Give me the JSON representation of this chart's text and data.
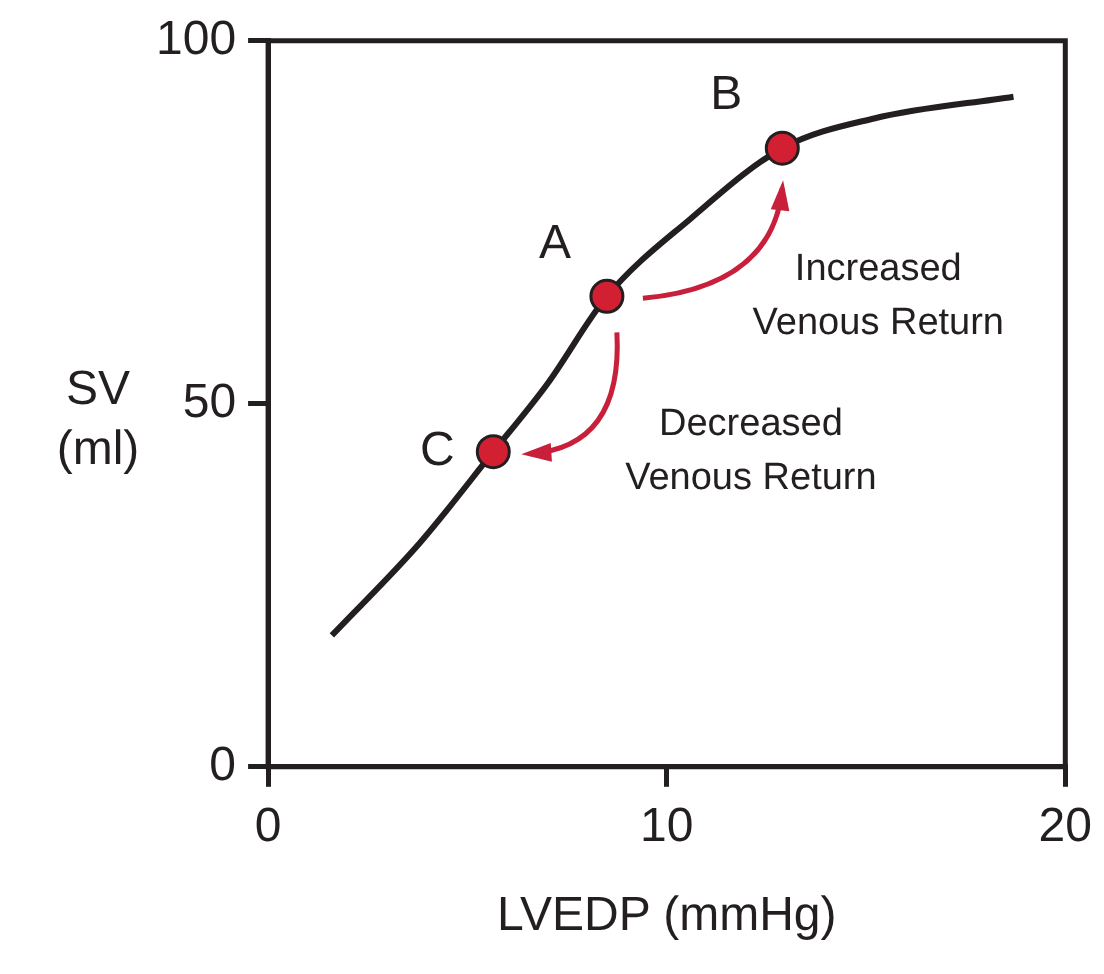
{
  "chart_data": {
    "type": "line",
    "xlabel": "LVEDP (mmHg)",
    "ylabel": "SV\n(ml)",
    "xlim": [
      0,
      20
    ],
    "xticks": [
      0,
      10,
      20
    ],
    "ylim": [
      0,
      100
    ],
    "yticks": [
      0,
      50,
      100
    ],
    "grid": false,
    "legend": false,
    "series": [
      {
        "color": "#231f20",
        "marker": "none",
        "x": [
          1.6,
          3.8,
          5.65,
          7.0,
          8.5,
          10.6,
          12.9,
          15.2,
          18.7
        ],
        "values": [
          18.1,
          30.8,
          43.4,
          52.7,
          64.8,
          75.5,
          85.2,
          89.3,
          92.3
        ]
      },
      {
        "type": "scatter",
        "color": "#d21f32",
        "marker": "circle",
        "x": [
          5.65,
          8.5,
          12.9
        ],
        "values": [
          43.4,
          64.8,
          85.2
        ]
      }
    ],
    "annotations": [
      {
        "text": "A",
        "x": 8.5,
        "y": 64.8
      },
      {
        "text": "B",
        "x": 12.9,
        "y": 85.2
      },
      {
        "text": "C",
        "x": 5.65,
        "y": 43.4
      },
      "Increased\nVenous Return",
      "Decreased\nVenous Return"
    ]
  }
}
